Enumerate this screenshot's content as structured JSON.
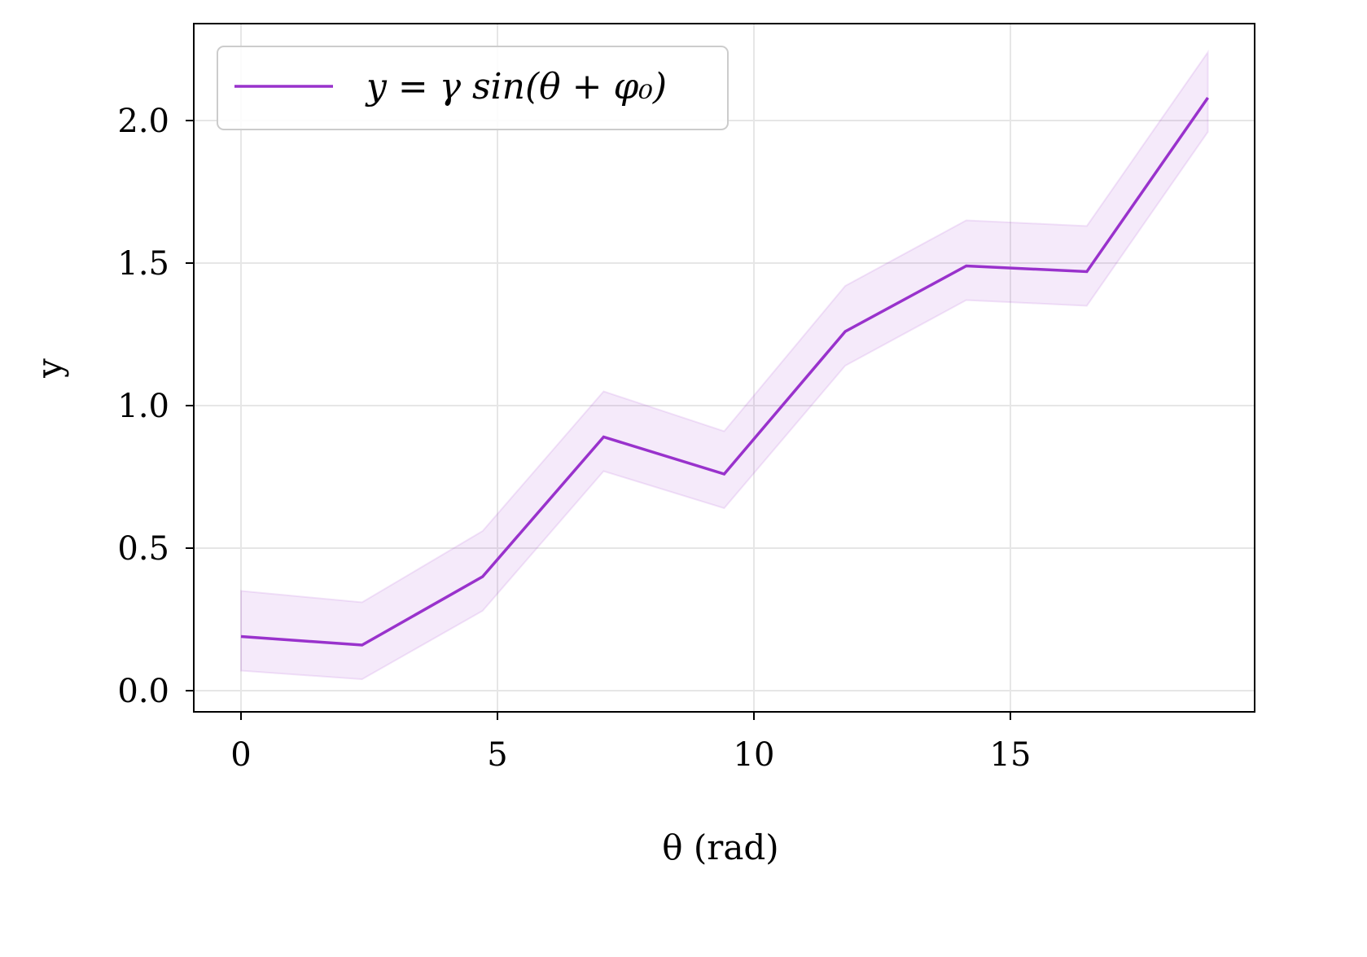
{
  "chart_data": {
    "type": "line",
    "title": "",
    "xlabel": "θ (rad)",
    "ylabel": "y",
    "xlim": [
      -0.94,
      19.8
    ],
    "ylim": [
      -0.08,
      2.34
    ],
    "grid": true,
    "legend_position": "upper left",
    "x_ticks": [
      0,
      5,
      10,
      15
    ],
    "x_tick_labels": [
      "0",
      "5",
      "10",
      "15"
    ],
    "y_ticks": [
      0.0,
      0.5,
      1.0,
      1.5,
      2.0
    ],
    "y_tick_labels": [
      "0.0",
      "0.5",
      "1.0",
      "1.5",
      "2.0"
    ],
    "series": [
      {
        "name": "y = γ sin(θ + φ₀)",
        "color": "#9932cc",
        "x": [
          0.0,
          2.36,
          4.71,
          7.07,
          9.42,
          11.78,
          14.14,
          16.49,
          18.85
        ],
        "values": [
          0.19,
          0.16,
          0.4,
          0.89,
          0.76,
          1.26,
          1.49,
          1.47,
          2.08
        ],
        "band_lower": [
          0.07,
          0.04,
          0.28,
          0.77,
          0.64,
          1.14,
          1.37,
          1.35,
          1.96
        ],
        "band_upper": [
          0.35,
          0.31,
          0.56,
          1.05,
          0.91,
          1.42,
          1.65,
          1.63,
          2.24
        ]
      }
    ]
  },
  "legend": {
    "entry": "y = γ sin(θ + φ₀)"
  },
  "axes": {
    "xlabel": "θ (rad)",
    "ylabel": "y"
  },
  "colors": {
    "line": "#9932cc",
    "band": "#9932cc",
    "grid": "#e6e6e6",
    "axis": "#000000",
    "legend_border": "#cccccc"
  }
}
